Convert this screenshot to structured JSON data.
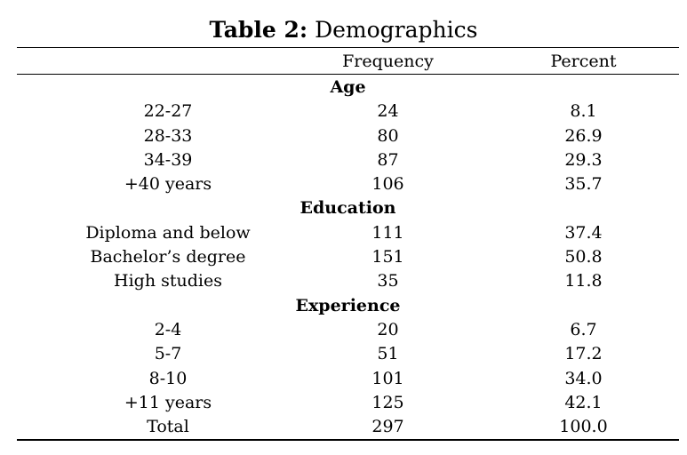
{
  "caption": {
    "label": "Table 2:",
    "title": " Demographics"
  },
  "columns": {
    "frequency": "Frequency",
    "percent": "Percent"
  },
  "sections": [
    {
      "title": "Age",
      "rows": [
        {
          "label": "22-27",
          "frequency": "24",
          "percent": "8.1"
        },
        {
          "label": "28-33",
          "frequency": "80",
          "percent": "26.9"
        },
        {
          "label": "34-39",
          "frequency": "87",
          "percent": "29.3"
        },
        {
          "label": "+40 years",
          "frequency": "106",
          "percent": "35.7"
        }
      ]
    },
    {
      "title": "Education",
      "rows": [
        {
          "label": "Diploma and below",
          "frequency": "111",
          "percent": "37.4"
        },
        {
          "label": "Bachelor’s degree",
          "frequency": "151",
          "percent": "50.8"
        },
        {
          "label": "High studies",
          "frequency": "35",
          "percent": "11.8"
        }
      ]
    },
    {
      "title": "Experience",
      "rows": [
        {
          "label": "2-4",
          "frequency": "20",
          "percent": "6.7"
        },
        {
          "label": "5-7",
          "frequency": "51",
          "percent": "17.2"
        },
        {
          "label": "8-10",
          "frequency": "101",
          "percent": "34.0"
        },
        {
          "label": "+11 years",
          "frequency": "125",
          "percent": "42.1"
        }
      ]
    }
  ],
  "total": {
    "label": "Total",
    "frequency": "297",
    "percent": "100.0"
  }
}
